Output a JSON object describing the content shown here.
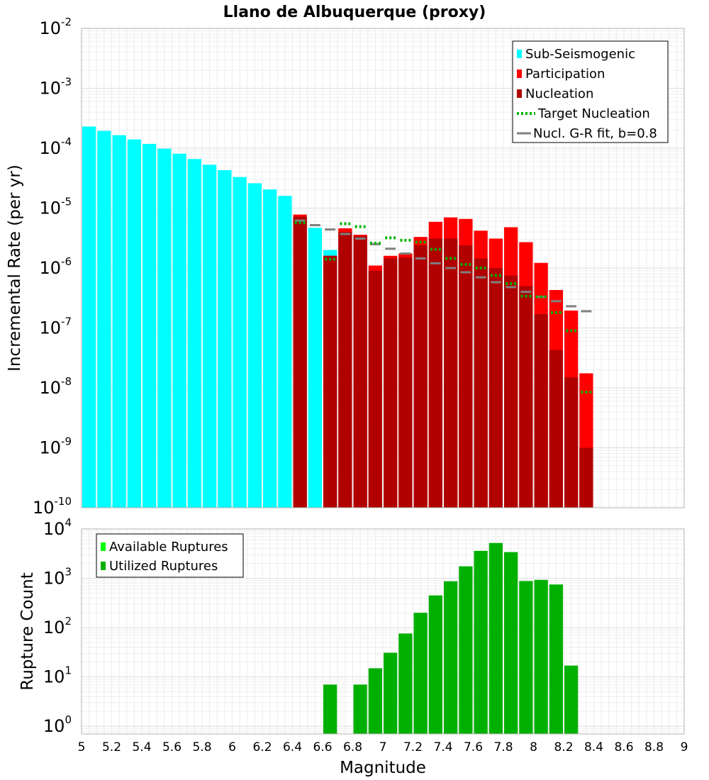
{
  "chart_data": [
    {
      "type": "bar",
      "title": "Llano de Albuquerque (proxy)",
      "xlabel": "",
      "ylabel": "Incremental Rate (per yr)",
      "y_scale": "log",
      "xlim": [
        5,
        9
      ],
      "ylim": [
        1e-10,
        0.01
      ],
      "y_ticks": [
        {
          "base": "10",
          "exp": "-10"
        },
        {
          "base": "10",
          "exp": "-9"
        },
        {
          "base": "10",
          "exp": "-8"
        },
        {
          "base": "10",
          "exp": "-7"
        },
        {
          "base": "10",
          "exp": "-6"
        },
        {
          "base": "10",
          "exp": "-5"
        },
        {
          "base": "10",
          "exp": "-4"
        },
        {
          "base": "10",
          "exp": "-3"
        },
        {
          "base": "10",
          "exp": "-2"
        }
      ],
      "y_tick_values": [
        1e-10,
        1e-09,
        1e-08,
        1e-07,
        1e-06,
        1e-05,
        0.0001,
        0.001,
        0.01
      ],
      "grid": true,
      "legend_position": "top-right",
      "legend": [
        {
          "label": "Sub-Seismogenic",
          "kind": "bar",
          "color": "#00ffff"
        },
        {
          "label": "Participation",
          "kind": "bar",
          "color": "#ff0000"
        },
        {
          "label": "Nucleation",
          "kind": "bar",
          "color": "#b00000"
        },
        {
          "label": "Target Nucleation",
          "kind": "dotted",
          "color": "#00b400"
        },
        {
          "label": "Nucl. G-R fit, b=0.8",
          "kind": "line",
          "color": "#808080"
        }
      ],
      "bar_width": 0.1,
      "series": {
        "sub_seismogenic": {
          "x": [
            5.05,
            5.15,
            5.25,
            5.35,
            5.45,
            5.55,
            5.65,
            5.75,
            5.85,
            5.95,
            6.05,
            6.15,
            6.25,
            6.35,
            6.45,
            6.55,
            6.65
          ],
          "values": [
            0.00023,
            0.000195,
            0.000165,
            0.00014,
            0.000118,
            9.8e-05,
            8.1e-05,
            6.6e-05,
            5.3e-05,
            4.3e-05,
            3.3e-05,
            2.6e-05,
            2.05e-05,
            1.6e-05,
            7.5e-06,
            4.7e-06,
            2e-06
          ]
        },
        "participation": {
          "x": [
            6.45,
            6.65,
            6.75,
            6.85,
            6.95,
            7.05,
            7.15,
            7.25,
            7.35,
            7.45,
            7.55,
            7.65,
            7.75,
            7.85,
            7.95,
            8.05,
            8.15,
            8.25,
            8.35
          ],
          "values": [
            7.8e-06,
            1.6e-06,
            4.6e-06,
            3.6e-06,
            1.1e-06,
            1.6e-06,
            1.75e-06,
            3.3e-06,
            5.9e-06,
            7e-06,
            6.6e-06,
            4.2e-06,
            3.1e-06,
            4.8e-06,
            2.7e-06,
            1.22e-06,
            4.3e-07,
            1.95e-07,
            1.75e-08
          ]
        },
        "nucleation": {
          "x": [
            6.45,
            6.65,
            6.75,
            6.85,
            6.95,
            7.05,
            7.15,
            7.25,
            7.35,
            7.45,
            7.55,
            7.65,
            7.75,
            7.85,
            7.95,
            8.05,
            8.15,
            8.25,
            8.35
          ],
          "values": [
            7.2e-06,
            1.6e-06,
            4e-06,
            3.4e-06,
            9e-07,
            1.45e-06,
            1.5e-06,
            2.4e-06,
            3.1e-06,
            3.1e-06,
            2.4e-06,
            1.45e-06,
            1e-06,
            7.5e-07,
            5e-07,
            1.7e-07,
            4.3e-08,
            1.5e-08,
            1e-09
          ]
        },
        "target_nucleation": {
          "x": [
            6.45,
            6.65,
            6.75,
            6.85,
            6.95,
            7.05,
            7.15,
            7.25,
            7.35,
            7.45,
            7.55,
            7.65,
            7.75,
            7.85,
            7.95,
            8.05,
            8.15,
            8.25,
            8.35
          ],
          "values": [
            5.7e-06,
            1.4e-06,
            5.5e-06,
            4.9e-06,
            2.6e-06,
            3.2e-06,
            2.9e-06,
            2.7e-06,
            2.05e-06,
            1.45e-06,
            1.15e-06,
            1e-06,
            7.5e-07,
            5.5e-07,
            3.4e-07,
            3.3e-07,
            1.8e-07,
            9e-08,
            8.5e-09
          ]
        },
        "gr_fit": {
          "x": [
            6.45,
            6.55,
            6.65,
            6.75,
            6.85,
            6.95,
            7.05,
            7.15,
            7.25,
            7.35,
            7.45,
            7.55,
            7.65,
            7.75,
            7.85,
            7.95,
            8.05,
            8.15,
            8.25,
            8.35
          ],
          "values": [
            6.2e-06,
            5.2e-06,
            4.4e-06,
            3.7e-06,
            3.1e-06,
            2.5e-06,
            2.1e-06,
            1.75e-06,
            1.45e-06,
            1.2e-06,
            1e-06,
            8.5e-07,
            7e-07,
            5.8e-07,
            4.8e-07,
            4e-07,
            3.3e-07,
            2.8e-07,
            2.3e-07,
            1.9e-07
          ]
        }
      }
    },
    {
      "type": "bar",
      "title": "",
      "xlabel": "Magnitude",
      "ylabel": "Rupture Count",
      "y_scale": "log",
      "xlim": [
        5,
        9
      ],
      "ylim": [
        0.7,
        10000
      ],
      "y_ticks": [
        {
          "base": "10",
          "exp": "0"
        },
        {
          "base": "10",
          "exp": "1"
        },
        {
          "base": "10",
          "exp": "2"
        },
        {
          "base": "10",
          "exp": "3"
        },
        {
          "base": "10",
          "exp": "4"
        }
      ],
      "y_tick_values": [
        1,
        10,
        100,
        1000,
        10000
      ],
      "x_tick_labels": [
        "5",
        "5.2",
        "5.4",
        "5.6",
        "5.8",
        "6",
        "6.2",
        "6.4",
        "6.6",
        "6.8",
        "7",
        "7.2",
        "7.4",
        "7.6",
        "7.8",
        "8",
        "8.2",
        "8.4",
        "8.6",
        "8.8",
        "9"
      ],
      "x_tick_values": [
        5,
        5.2,
        5.4,
        5.6,
        5.8,
        6,
        6.2,
        6.4,
        6.6,
        6.8,
        7,
        7.2,
        7.4,
        7.6,
        7.8,
        8,
        8.2,
        8.4,
        8.6,
        8.8,
        9
      ],
      "grid": true,
      "legend_position": "top-left",
      "legend": [
        {
          "label": "Available Ruptures",
          "kind": "bar",
          "color": "#00ff00"
        },
        {
          "label": "Utilized Ruptures",
          "kind": "bar",
          "color": "#00b000"
        }
      ],
      "bar_width": 0.1,
      "series": {
        "utilized": {
          "x": [
            6.65,
            6.85,
            6.95,
            7.05,
            7.15,
            7.25,
            7.35,
            7.45,
            7.55,
            7.65,
            7.75,
            7.85,
            7.95,
            8.05,
            8.15,
            8.25
          ],
          "values": [
            7,
            7,
            15,
            31,
            76,
            200,
            450,
            870,
            1750,
            3600,
            5200,
            3400,
            880,
            930,
            750,
            17
          ]
        }
      }
    }
  ]
}
